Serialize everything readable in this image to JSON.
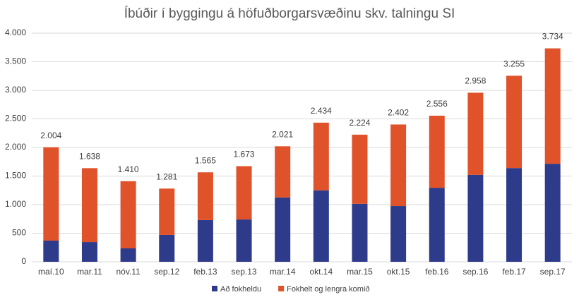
{
  "chart_data": {
    "type": "stacked_bar",
    "title": "Íbúðir í byggingu á höfuðborgarsvæðinu skv. talningu SI",
    "categories": [
      "maí.10",
      "mar.11",
      "nóv.11",
      "sep.12",
      "feb.13",
      "sep.13",
      "mar.14",
      "okt.14",
      "mar.15",
      "okt.15",
      "feb.16",
      "sep.16",
      "feb.17",
      "sep.17"
    ],
    "series": [
      {
        "name": "Að fokheldu",
        "color": "#2e3b8b",
        "values": [
          370,
          345,
          235,
          470,
          730,
          740,
          1125,
          1250,
          1015,
          975,
          1295,
          1520,
          1640,
          1715
        ]
      },
      {
        "name": "Fokhelt og lengra komið",
        "color": "#e0522a",
        "values": [
          1634,
          1293,
          1175,
          811,
          835,
          933,
          896,
          1184,
          1209,
          1427,
          1261,
          1438,
          1615,
          2019
        ]
      }
    ],
    "totals": {
      "values": [
        2004,
        1638,
        1410,
        1281,
        1565,
        1673,
        2021,
        2434,
        2224,
        2402,
        2556,
        2958,
        3255,
        3734
      ],
      "value_labels": [
        "2.004",
        "1.638",
        "1.410",
        "1.281",
        "1.565",
        "1.673",
        "2.021",
        "2.434",
        "2.224",
        "2.402",
        "2.556",
        "2.958",
        "3.255",
        "3.734"
      ]
    },
    "ylim": [
      0,
      4000
    ],
    "yticks": [
      0,
      500,
      {
        "value": 1000,
        "label": "1.000"
      },
      {
        "value": 1500,
        "label": "1.500"
      },
      {
        "value": 2000,
        "label": "2.000"
      },
      {
        "value": 2500,
        "label": "2.500"
      },
      {
        "value": 3000,
        "label": "3.000"
      },
      {
        "value": 3500,
        "label": "3.500"
      },
      {
        "value": 4000,
        "label": "4.000"
      }
    ],
    "grid": true,
    "legend": "bottom"
  }
}
